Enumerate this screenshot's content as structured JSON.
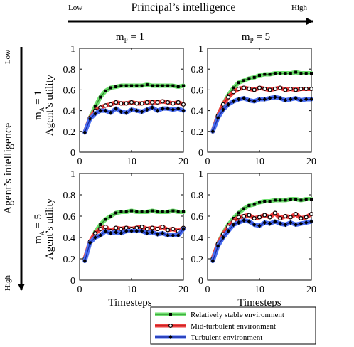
{
  "header": {
    "top_low": "Low",
    "top_title": "Principal’s intelligence",
    "top_high": "High",
    "side_low": "Low",
    "side_title": "Agent’s intelligence",
    "side_high": "High"
  },
  "columns": [
    {
      "label_base": "m",
      "label_sub": "P",
      "label_rest": " = 1"
    },
    {
      "label_base": "m",
      "label_sub": "P",
      "label_rest": " = 5"
    }
  ],
  "rows": [
    {
      "label_base": "m",
      "label_sub": "A",
      "label_rest": " = 1",
      "ylabel": "Agent’s utility"
    },
    {
      "label_base": "m",
      "label_sub": "A",
      "label_rest": " = 5",
      "ylabel": "Agent’s utility"
    }
  ],
  "xlabel": "Timesteps",
  "series_styles": [
    {
      "name": "Relatively stable environment",
      "color": "#2a8a2a",
      "band": "#6fe06f",
      "marker": "square"
    },
    {
      "name": "Mid-turbulent environment",
      "color": "#b01818",
      "band": "#ee4040",
      "marker": "circle"
    },
    {
      "name": "Turbulent environment",
      "color": "#1a2aa0",
      "band": "#4a6ef0",
      "marker": "diamond"
    }
  ],
  "chart_data": [
    {
      "type": "line",
      "title": "",
      "xlim": [
        0,
        20
      ],
      "ylim": [
        0,
        1
      ],
      "xticks": [
        0,
        10,
        20
      ],
      "yticks": [
        0,
        0.2,
        0.4,
        0.6,
        0.8,
        1
      ],
      "x": [
        1,
        2,
        3,
        4,
        5,
        6,
        7,
        8,
        9,
        10,
        11,
        12,
        13,
        14,
        15,
        16,
        17,
        18,
        19,
        20
      ],
      "series": [
        {
          "name": "Relatively stable environment",
          "values": [
            0.19,
            0.33,
            0.44,
            0.53,
            0.59,
            0.62,
            0.63,
            0.64,
            0.64,
            0.64,
            0.64,
            0.64,
            0.65,
            0.64,
            0.64,
            0.64,
            0.64,
            0.64,
            0.63,
            0.64
          ]
        },
        {
          "name": "Mid-turbulent environment",
          "values": [
            0.19,
            0.33,
            0.4,
            0.43,
            0.45,
            0.46,
            0.48,
            0.47,
            0.47,
            0.48,
            0.47,
            0.47,
            0.48,
            0.48,
            0.48,
            0.49,
            0.48,
            0.47,
            0.48,
            0.46
          ]
        },
        {
          "name": "Turbulent environment",
          "values": [
            0.19,
            0.32,
            0.37,
            0.4,
            0.4,
            0.38,
            0.42,
            0.39,
            0.38,
            0.41,
            0.4,
            0.39,
            0.41,
            0.43,
            0.4,
            0.42,
            0.42,
            0.41,
            0.42,
            0.4
          ]
        }
      ]
    },
    {
      "type": "line",
      "title": "",
      "xlim": [
        0,
        20
      ],
      "ylim": [
        0,
        1
      ],
      "xticks": [
        0,
        10,
        20
      ],
      "yticks": [
        0,
        0.2,
        0.4,
        0.6,
        0.8,
        1
      ],
      "x": [
        1,
        2,
        3,
        4,
        5,
        6,
        7,
        8,
        9,
        10,
        11,
        12,
        13,
        14,
        15,
        16,
        17,
        18,
        19,
        20
      ],
      "series": [
        {
          "name": "Relatively stable environment",
          "values": [
            0.2,
            0.35,
            0.46,
            0.55,
            0.62,
            0.67,
            0.69,
            0.71,
            0.72,
            0.74,
            0.75,
            0.75,
            0.76,
            0.76,
            0.76,
            0.76,
            0.77,
            0.76,
            0.76,
            0.76
          ]
        },
        {
          "name": "Mid-turbulent environment",
          "values": [
            0.2,
            0.35,
            0.46,
            0.53,
            0.58,
            0.61,
            0.62,
            0.61,
            0.6,
            0.62,
            0.61,
            0.6,
            0.61,
            0.62,
            0.6,
            0.61,
            0.6,
            0.61,
            0.61,
            0.61
          ]
        },
        {
          "name": "Turbulent environment",
          "values": [
            0.2,
            0.33,
            0.41,
            0.46,
            0.49,
            0.51,
            0.52,
            0.5,
            0.49,
            0.51,
            0.51,
            0.52,
            0.53,
            0.52,
            0.5,
            0.51,
            0.52,
            0.5,
            0.51,
            0.51
          ]
        }
      ]
    },
    {
      "type": "line",
      "title": "",
      "xlim": [
        0,
        20
      ],
      "ylim": [
        0,
        1
      ],
      "xticks": [
        0,
        10,
        20
      ],
      "yticks": [
        0,
        0.2,
        0.4,
        0.6,
        0.8,
        1
      ],
      "x": [
        1,
        2,
        3,
        4,
        5,
        6,
        7,
        8,
        9,
        10,
        11,
        12,
        13,
        14,
        15,
        16,
        17,
        18,
        19,
        20
      ],
      "series": [
        {
          "name": "Relatively stable environment",
          "values": [
            0.2,
            0.35,
            0.45,
            0.52,
            0.57,
            0.6,
            0.63,
            0.64,
            0.64,
            0.65,
            0.64,
            0.64,
            0.64,
            0.65,
            0.64,
            0.64,
            0.64,
            0.65,
            0.64,
            0.64
          ]
        },
        {
          "name": "Mid-turbulent environment",
          "values": [
            0.2,
            0.36,
            0.44,
            0.48,
            0.5,
            0.46,
            0.49,
            0.48,
            0.49,
            0.48,
            0.49,
            0.5,
            0.48,
            0.49,
            0.48,
            0.5,
            0.47,
            0.48,
            0.46,
            0.49
          ]
        },
        {
          "name": "Turbulent environment",
          "values": [
            0.18,
            0.35,
            0.4,
            0.42,
            0.46,
            0.44,
            0.45,
            0.44,
            0.46,
            0.46,
            0.46,
            0.46,
            0.44,
            0.45,
            0.43,
            0.44,
            0.42,
            0.42,
            0.42,
            0.48
          ]
        }
      ]
    },
    {
      "type": "line",
      "title": "",
      "xlim": [
        0,
        20
      ],
      "ylim": [
        0,
        1
      ],
      "xticks": [
        0,
        10,
        20
      ],
      "yticks": [
        0,
        0.2,
        0.4,
        0.6,
        0.8,
        1
      ],
      "x": [
        1,
        2,
        3,
        4,
        5,
        6,
        7,
        8,
        9,
        10,
        11,
        12,
        13,
        14,
        15,
        16,
        17,
        18,
        19,
        20
      ],
      "series": [
        {
          "name": "Relatively stable environment",
          "values": [
            0.2,
            0.34,
            0.44,
            0.52,
            0.58,
            0.63,
            0.67,
            0.7,
            0.71,
            0.73,
            0.74,
            0.74,
            0.75,
            0.75,
            0.75,
            0.76,
            0.76,
            0.75,
            0.76,
            0.76
          ]
        },
        {
          "name": "Mid-turbulent environment",
          "values": [
            0.2,
            0.34,
            0.43,
            0.5,
            0.55,
            0.59,
            0.6,
            0.61,
            0.58,
            0.59,
            0.61,
            0.59,
            0.63,
            0.58,
            0.6,
            0.59,
            0.62,
            0.58,
            0.59,
            0.62
          ]
        },
        {
          "name": "Turbulent environment",
          "values": [
            0.18,
            0.32,
            0.4,
            0.46,
            0.52,
            0.54,
            0.56,
            0.55,
            0.52,
            0.51,
            0.54,
            0.53,
            0.55,
            0.53,
            0.52,
            0.54,
            0.52,
            0.53,
            0.54,
            0.55
          ]
        }
      ]
    }
  ]
}
